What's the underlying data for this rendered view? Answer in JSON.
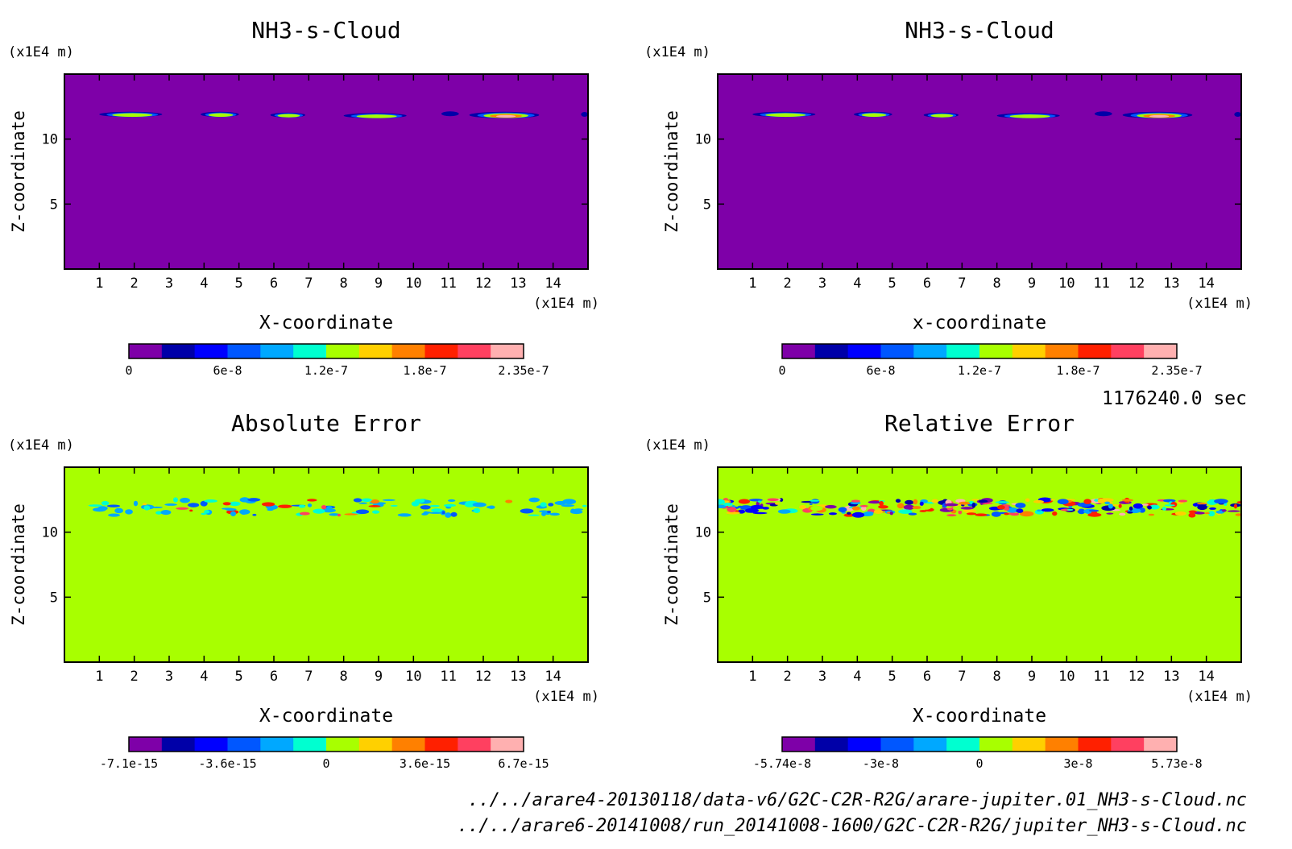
{
  "time_label": "1176240.0 sec",
  "files": [
    "../../arare4-20130118/data-v6/G2C-C2R-R2G/arare-jupiter.01_NH3-s-Cloud.nc",
    "../../arare6-20141008/run_20141008-1600/G2C-C2R-R2G/jupiter_NH3-s-Cloud.nc"
  ],
  "colors": {
    "bands": [
      "#7e00a8",
      "#0000a8",
      "#0000ff",
      "#0057ff",
      "#00a8ff",
      "#00ffd0",
      "#a8ff00",
      "#ffd000",
      "#ff8000",
      "#ff2000",
      "#ff4060",
      "#ffb0b0"
    ],
    "frame": "#000000",
    "background_value_colors": {
      "cloud": "#7e00a8",
      "error": "#a8ff00"
    }
  },
  "chart_data": [
    {
      "type": "heatmap",
      "title": "NH3-s-Cloud",
      "xlabel": "X-coordinate",
      "ylabel": "Z-coordinate",
      "x_unit": "(x1E4 m)",
      "y_unit": "(x1E4 m)",
      "xlim": [
        0,
        15
      ],
      "ylim": [
        0,
        15
      ],
      "x_ticks": [
        "1",
        "2",
        "3",
        "4",
        "5",
        "6",
        "7",
        "8",
        "9",
        "10",
        "11",
        "12",
        "13",
        "14"
      ],
      "y_ticks": [
        "5",
        "10"
      ],
      "background": "#7e00a8",
      "features": [
        {
          "x": [
            1.0,
            2.8
          ],
          "z": [
            11.7,
            12.1
          ],
          "peak": 1.4e-07
        },
        {
          "x": [
            3.9,
            5.0
          ],
          "z": [
            11.7,
            12.1
          ],
          "peak": 1.5e-07
        },
        {
          "x": [
            5.9,
            6.9
          ],
          "z": [
            11.7,
            12.0
          ],
          "peak": 1.3e-07
        },
        {
          "x": [
            8.0,
            9.8
          ],
          "z": [
            11.6,
            12.0
          ],
          "peak": 1.2e-07
        },
        {
          "x": [
            10.8,
            11.3
          ],
          "z": [
            11.9,
            12.0
          ],
          "peak": 3e-08
        },
        {
          "x": [
            11.6,
            13.6
          ],
          "z": [
            11.6,
            12.1
          ],
          "peak": 2.35e-07
        },
        {
          "x": [
            14.8,
            15.0
          ],
          "z": [
            11.8,
            12.0
          ],
          "peak": 6e-08
        }
      ],
      "colorbar": {
        "ticks": [
          "0",
          "6e-8",
          "1.2e-7",
          "1.8e-7",
          "2.35e-7"
        ],
        "min": 0,
        "max": 2.35e-07
      }
    },
    {
      "type": "heatmap",
      "title": "NH3-s-Cloud",
      "xlabel": "x-coordinate",
      "ylabel": "Z-coordinate",
      "x_unit": "(x1E4 m)",
      "y_unit": "(x1E4 m)",
      "xlim": [
        0,
        15
      ],
      "ylim": [
        0,
        15
      ],
      "x_ticks": [
        "1",
        "2",
        "3",
        "4",
        "5",
        "6",
        "7",
        "8",
        "9",
        "10",
        "11",
        "12",
        "13",
        "14"
      ],
      "y_ticks": [
        "5",
        "10"
      ],
      "background": "#7e00a8",
      "features": [
        {
          "x": [
            1.0,
            2.8
          ],
          "z": [
            11.7,
            12.1
          ],
          "peak": 1.4e-07
        },
        {
          "x": [
            3.9,
            5.0
          ],
          "z": [
            11.7,
            12.1
          ],
          "peak": 1.5e-07
        },
        {
          "x": [
            5.9,
            6.9
          ],
          "z": [
            11.7,
            12.0
          ],
          "peak": 1.3e-07
        },
        {
          "x": [
            8.0,
            9.8
          ],
          "z": [
            11.6,
            12.0
          ],
          "peak": 1.2e-07
        },
        {
          "x": [
            10.8,
            11.3
          ],
          "z": [
            11.9,
            12.0
          ],
          "peak": 3e-08
        },
        {
          "x": [
            11.6,
            13.6
          ],
          "z": [
            11.6,
            12.1
          ],
          "peak": 2.35e-07
        },
        {
          "x": [
            14.8,
            15.0
          ],
          "z": [
            11.8,
            12.0
          ],
          "peak": 6e-08
        }
      ],
      "colorbar": {
        "ticks": [
          "0",
          "6e-8",
          "1.2e-7",
          "1.8e-7",
          "2.35e-7"
        ],
        "min": 0,
        "max": 2.35e-07
      }
    },
    {
      "type": "heatmap",
      "title": "Absolute Error",
      "xlabel": "X-coordinate",
      "ylabel": "Z-coordinate",
      "x_unit": "(x1E4 m)",
      "y_unit": "(x1E4 m)",
      "xlim": [
        0,
        15
      ],
      "ylim": [
        0,
        15
      ],
      "x_ticks": [
        "1",
        "2",
        "3",
        "4",
        "5",
        "6",
        "7",
        "8",
        "9",
        "10",
        "11",
        "12",
        "13",
        "14"
      ],
      "y_ticks": [
        "5",
        "10"
      ],
      "background": "#a8ff00",
      "noise_band": {
        "x": [
          0.8,
          15.0
        ],
        "z": [
          11.3,
          12.5
        ],
        "min": -7.1e-15,
        "max": 6.7e-15
      },
      "colorbar": {
        "ticks": [
          "-7.1e-15",
          "-3.6e-15",
          "0",
          "3.6e-15",
          "6.7e-15"
        ],
        "min": -7.1e-15,
        "max": 6.7e-15
      }
    },
    {
      "type": "heatmap",
      "title": "Relative Error",
      "xlabel": "X-coordinate",
      "ylabel": "Z-coordinate",
      "x_unit": "(x1E4 m)",
      "y_unit": "(x1E4 m)",
      "xlim": [
        0,
        15
      ],
      "ylim": [
        0,
        15
      ],
      "x_ticks": [
        "1",
        "2",
        "3",
        "4",
        "5",
        "6",
        "7",
        "8",
        "9",
        "10",
        "11",
        "12",
        "13",
        "14"
      ],
      "y_ticks": [
        "5",
        "10"
      ],
      "background": "#a8ff00",
      "noise_band": {
        "x": [
          0.0,
          15.0
        ],
        "z": [
          11.3,
          12.5
        ],
        "min": -5.74e-08,
        "max": 5.73e-08
      },
      "colorbar": {
        "ticks": [
          "-5.74e-8",
          "-3e-8",
          "0",
          "3e-8",
          "5.73e-8"
        ],
        "min": -5.74e-08,
        "max": 5.73e-08
      }
    }
  ]
}
